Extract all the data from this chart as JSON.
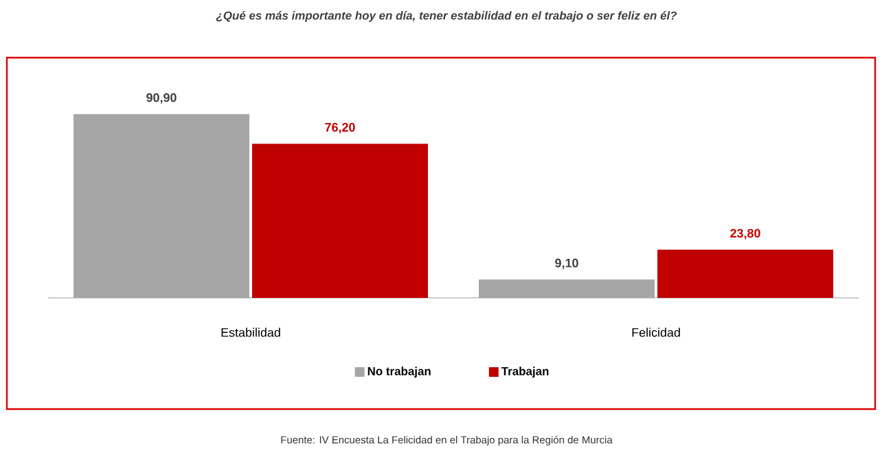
{
  "chart_data": {
    "type": "bar",
    "title": "¿Qué es más importante hoy en día, tener estabilidad en el trabajo o ser feliz en él?",
    "categories": [
      "Estabilidad",
      "Felicidad"
    ],
    "series": [
      {
        "name": "No trabajan",
        "color": "#a6a6a6",
        "values": [
          90.9,
          9.1
        ],
        "value_labels": [
          "90,90",
          "9,10"
        ]
      },
      {
        "name": "Trabajan",
        "color": "#c00000",
        "values": [
          76.2,
          23.8
        ],
        "value_labels": [
          "76,20",
          "23,80"
        ]
      }
    ],
    "legend": "bottom",
    "annotations": [
      "Fuente: IV Encuesta La Felicidad en el Trabajo para la Región de Murcia"
    ]
  }
}
